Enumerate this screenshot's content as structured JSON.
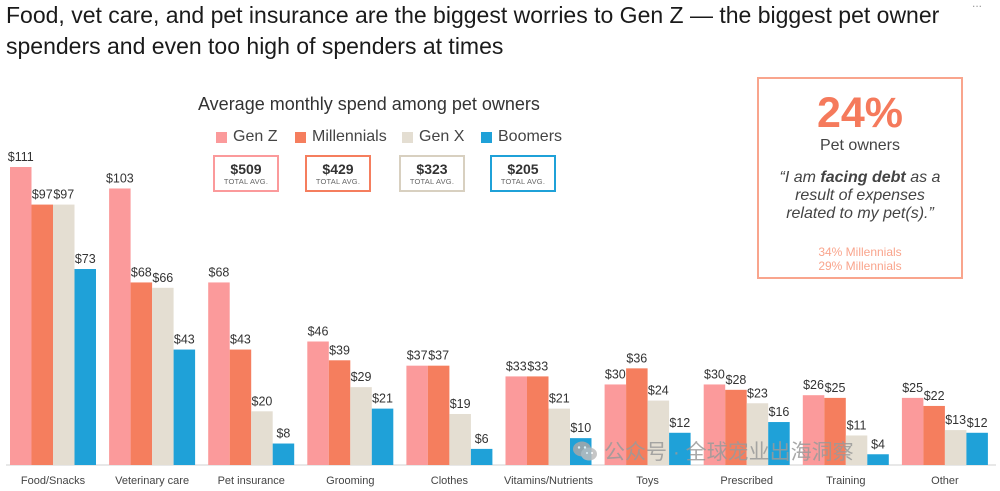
{
  "headline": "Food, vet care, and pet insurance are the biggest worries to Gen Z — the biggest pet owner spenders and even too high of spenders at times",
  "corner_mark": "...",
  "colors": {
    "gen_z": "#fb9a9b",
    "millennials": "#f57e5e",
    "gen_x": "#e4ded2",
    "boomers": "#1fa1d8",
    "callout_accent": "#f57a5c",
    "callout_border": "#f9a58d"
  },
  "totals": [
    {
      "value": "$509",
      "caption": "TOTAL AVG."
    },
    {
      "value": "$429",
      "caption": "TOTAL AVG."
    },
    {
      "value": "$323",
      "caption": "TOTAL AVG."
    },
    {
      "value": "$205",
      "caption": "TOTAL AVG."
    }
  ],
  "callout": {
    "percent": "24%",
    "subject": "Pet owners",
    "quote_open": "“I am ",
    "quote_bold": "facing debt",
    "quote_close": " as a result of expenses related to my pet(s).”",
    "stat_1": "34% Millennials",
    "stat_2": "29% Millennials"
  },
  "watermark": {
    "text": "公众号 · 全球宠业出海洞察",
    "icon": "wechat-icon"
  },
  "chart_data": {
    "type": "bar",
    "title": "Average monthly spend among pet owners",
    "categories": [
      "Food/Snacks",
      "Veterinary care",
      "Pet insurance",
      "Grooming",
      "Clothes",
      "Vitamins/Nutrients",
      "Toys",
      "Prescribed",
      "Training",
      "Other"
    ],
    "series": [
      {
        "name": "Gen Z",
        "values": [
          111,
          103,
          68,
          46,
          37,
          33,
          30,
          30,
          26,
          25
        ]
      },
      {
        "name": "Millennials",
        "values": [
          97,
          68,
          43,
          39,
          37,
          33,
          36,
          28,
          25,
          22
        ]
      },
      {
        "name": "Gen X",
        "values": [
          97,
          66,
          20,
          29,
          19,
          21,
          24,
          23,
          11,
          13
        ]
      },
      {
        "name": "Boomers",
        "values": [
          73,
          43,
          8,
          21,
          6,
          10,
          12,
          16,
          4,
          12
        ]
      }
    ],
    "value_labels": [
      [
        "$111",
        "$97",
        "$97",
        "$73"
      ],
      [
        "$103",
        "$68",
        "$66",
        "$43"
      ],
      [
        "$68",
        "$43",
        "$20",
        "$8"
      ],
      [
        "$46",
        "$39",
        "$29",
        "$21"
      ],
      [
        "$37",
        "$37",
        "$19",
        "$6"
      ],
      [
        "$33",
        "$33",
        "$21",
        "$10"
      ],
      [
        "$30",
        "$36",
        "$24",
        "$12"
      ],
      [
        "$30",
        "$28",
        "$23",
        "$16"
      ],
      [
        "$26",
        "$25",
        "$11",
        "$4"
      ],
      [
        "$25",
        "$22",
        "$13",
        "$12"
      ]
    ],
    "ylim": [
      0,
      111
    ],
    "grid": false,
    "legend": "top-center"
  }
}
